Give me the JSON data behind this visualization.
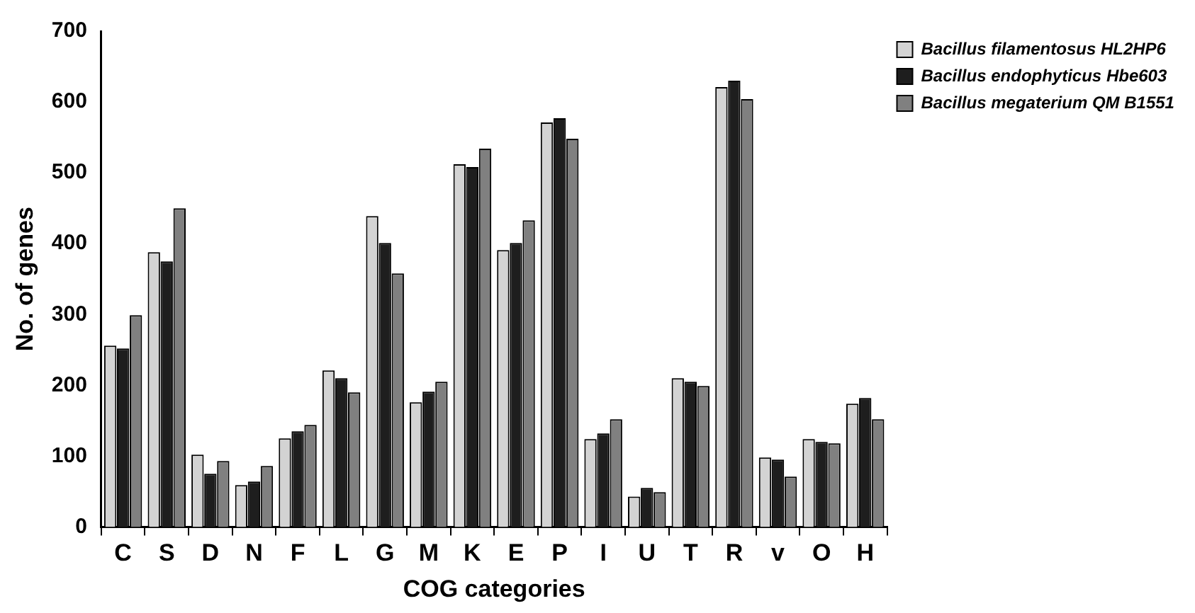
{
  "chart_data": {
    "type": "bar",
    "xlabel": "COG categories",
    "ylabel": "No. of genes",
    "categories": [
      "C",
      "S",
      "D",
      "N",
      "F",
      "L",
      "G",
      "M",
      "K",
      "E",
      "P",
      "I",
      "U",
      "T",
      "R",
      "v",
      "O",
      "H"
    ],
    "series": [
      {
        "name": "Bacillus filamentosus HL2HP6",
        "color": "#d3d3d3",
        "values": [
          256,
          388,
          102,
          59,
          125,
          221,
          439,
          176,
          512,
          391,
          571,
          124,
          43,
          210,
          621,
          98,
          124,
          174
        ]
      },
      {
        "name": "Bacillus endophyticus Hbe603",
        "color": "#1e1e1e",
        "values": [
          252,
          375,
          75,
          64,
          135,
          210,
          401,
          191,
          508,
          401,
          577,
          132,
          55,
          205,
          630,
          95,
          120,
          182
        ]
      },
      {
        "name": "Bacillus megaterium QM B1551",
        "color": "#808080",
        "values": [
          299,
          450,
          93,
          86,
          144,
          190,
          358,
          205,
          534,
          433,
          548,
          152,
          49,
          199,
          604,
          71,
          118,
          152
        ]
      }
    ],
    "ylim": [
      0,
      700
    ],
    "yticks": [
      0,
      100,
      200,
      300,
      400,
      500,
      600,
      700
    ],
    "grid": false,
    "legend": "top right"
  }
}
